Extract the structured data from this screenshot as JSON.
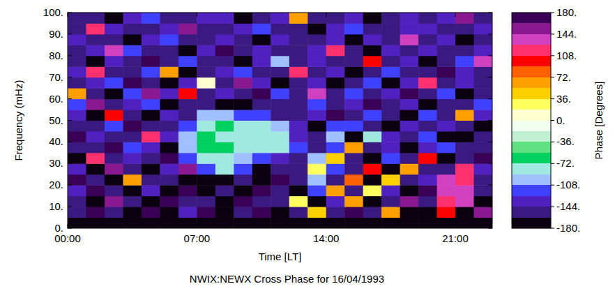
{
  "chart_data": {
    "type": "heatmap",
    "title": "NWIX:NEWX Cross Phase for 16/04/1993",
    "x_label": "Time [LT]",
    "y_label": "Frequency (mHz)",
    "x_edges": [
      0,
      1,
      2,
      3,
      4,
      5,
      6,
      7,
      8,
      9,
      10,
      11,
      12,
      13,
      14,
      15,
      16,
      17,
      18,
      19,
      20,
      21,
      22,
      23
    ],
    "y_edges": [
      0,
      5,
      10,
      15,
      20,
      25,
      30,
      35,
      40,
      45,
      50,
      55,
      60,
      65,
      70,
      75,
      80,
      85,
      90,
      95,
      100
    ],
    "cells": [
      [
        -176,
        -178,
        -175,
        -179,
        -177,
        -176,
        -178,
        -175,
        -177,
        -179,
        -176,
        -178,
        -175,
        -177,
        -176,
        -179,
        -178,
        -175,
        -177,
        -176,
        -178,
        -179,
        -177
      ],
      [
        -160,
        170,
        -150,
        -170,
        165,
        -165,
        -140,
        175,
        -172,
        -155,
        168,
        -168,
        -145,
        40,
        -160,
        170,
        -150,
        60,
        -175,
        -165,
        100,
        -170,
        160
      ],
      [
        -150,
        -170,
        160,
        -145,
        -175,
        172,
        -160,
        -155,
        -170,
        178,
        -162,
        -148,
        20,
        -165,
        -130,
        55,
        -170,
        -160,
        150,
        -155,
        125,
        135,
        -170
      ],
      [
        -140,
        165,
        -160,
        -175,
        -130,
        -168,
        175,
        -172,
        -158,
        -166,
        176,
        -150,
        -172,
        -120,
        70,
        -160,
        30,
        -140,
        -165,
        175,
        130,
        140,
        -150
      ],
      [
        170,
        -155,
        -168,
        60,
        -160,
        -145,
        -172,
        -165,
        -175,
        -150,
        -170,
        168,
        -155,
        -100,
        -150,
        80,
        -170,
        50,
        -160,
        -140,
        140,
        120,
        -160
      ],
      [
        -130,
        -170,
        150,
        -160,
        -175,
        -140,
        160,
        -110,
        -90,
        -120,
        -165,
        -150,
        -160,
        20,
        -110,
        -150,
        100,
        -170,
        60,
        -155,
        -160,
        110,
        -140
      ],
      [
        -165,
        110,
        -145,
        -130,
        -150,
        170,
        -120,
        -80,
        -75,
        -95,
        -110,
        -130,
        -150,
        -100,
        40,
        -160,
        -170,
        -120,
        -145,
        90,
        -170,
        -150,
        175
      ],
      [
        -150,
        -160,
        170,
        -110,
        -140,
        -165,
        -100,
        -70,
        -72,
        -85,
        -78,
        -90,
        -120,
        -160,
        -110,
        60,
        -150,
        -130,
        -165,
        -140,
        -120,
        -160,
        -150
      ],
      [
        175,
        -140,
        -160,
        -150,
        120,
        -130,
        -95,
        -65,
        -75,
        -80,
        -90,
        -85,
        -130,
        -150,
        -100,
        -170,
        -80,
        -140,
        -155,
        -110,
        -165,
        -170,
        -145
      ],
      [
        -160,
        -150,
        -120,
        170,
        -145,
        -155,
        -110,
        -80,
        -70,
        -90,
        -85,
        -100,
        -140,
        -165,
        -120,
        -110,
        -150,
        -170,
        -135,
        -160,
        -140,
        -155,
        -165
      ],
      [
        -140,
        -170,
        90,
        -155,
        -165,
        -130,
        -150,
        -100,
        -95,
        -110,
        -120,
        -145,
        -160,
        -130,
        175,
        -150,
        -125,
        -160,
        -170,
        -120,
        -150,
        60,
        -140
      ],
      [
        -120,
        160,
        -150,
        -140,
        -110,
        -170,
        -160,
        -155,
        -165,
        -170,
        -150,
        -160,
        -145,
        -120,
        -160,
        -140,
        170,
        -150,
        -130,
        -165,
        -145,
        -160,
        -120
      ],
      [
        70,
        -150,
        -165,
        -120,
        150,
        -140,
        100,
        -160,
        -130,
        -145,
        170,
        -120,
        -160,
        140,
        -150,
        -110,
        -160,
        -130,
        165,
        -150,
        -120,
        -170,
        -160
      ],
      [
        -160,
        -130,
        -110,
        175,
        -150,
        -165,
        -140,
        0,
        -150,
        160,
        -135,
        -170,
        -150,
        -130,
        -165,
        -150,
        -120,
        -170,
        -140,
        110,
        -160,
        -130,
        -150
      ],
      [
        -140,
        110,
        -160,
        -150,
        -120,
        70,
        -170,
        -150,
        -140,
        -120,
        -160,
        -150,
        120,
        -160,
        -140,
        -170,
        -150,
        -120,
        -160,
        -150,
        170,
        -140,
        -160
      ],
      [
        -150,
        -165,
        -130,
        -160,
        170,
        -150,
        -120,
        -160,
        -150,
        -165,
        -140,
        -100,
        -160,
        -130,
        -150,
        -160,
        90,
        -150,
        -130,
        -165,
        -150,
        -120,
        140
      ],
      [
        -160,
        -140,
        140,
        -120,
        -160,
        -150,
        -165,
        -140,
        165,
        -150,
        -130,
        -160,
        -150,
        -140,
        110,
        -150,
        -165,
        -140,
        -150,
        -130,
        -160,
        -150,
        -130
      ],
      [
        -130,
        -160,
        -150,
        -165,
        -140,
        -120,
        -150,
        -160,
        -130,
        -150,
        -165,
        -140,
        -160,
        -150,
        -130,
        -165,
        -140,
        -160,
        130,
        -150,
        -140,
        -165,
        -150
      ],
      [
        -150,
        120,
        -140,
        -160,
        -150,
        -130,
        150,
        -150,
        -160,
        -140,
        -120,
        -160,
        -150,
        -165,
        -140,
        -120,
        -150,
        -160,
        -140,
        -130,
        -160,
        -150,
        -140
      ],
      [
        -160,
        -150,
        -165,
        -140,
        -120,
        -160,
        -150,
        -130,
        -140,
        -165,
        -150,
        -140,
        60,
        -150,
        -160,
        -140,
        -165,
        -150,
        -130,
        -160,
        -140,
        150,
        -160
      ]
    ],
    "xlim": [
      0,
      23
    ],
    "xticks": [
      {
        "value": 0,
        "label": "00:00"
      },
      {
        "value": 7,
        "label": "07:00"
      },
      {
        "value": 14,
        "label": "14:00"
      },
      {
        "value": 21,
        "label": "21:00"
      }
    ],
    "ylim": [
      0,
      100
    ],
    "yticks": [
      {
        "value": 0,
        "label": "0."
      },
      {
        "value": 10,
        "label": "10."
      },
      {
        "value": 20,
        "label": "20."
      },
      {
        "value": 30,
        "label": "30."
      },
      {
        "value": 40,
        "label": "40."
      },
      {
        "value": 50,
        "label": "50."
      },
      {
        "value": 60,
        "label": "60."
      },
      {
        "value": 70,
        "label": "70."
      },
      {
        "value": 80,
        "label": "80."
      },
      {
        "value": 90,
        "label": "90."
      },
      {
        "value": 100,
        "label": "100."
      }
    ],
    "colorbar": {
      "label": "Phase [Degrees]",
      "range": [
        -180,
        180
      ],
      "ticks": [
        {
          "value": 180,
          "label": "180."
        },
        {
          "value": 144,
          "label": "144."
        },
        {
          "value": 108,
          "label": "108."
        },
        {
          "value": 72,
          "label": "72."
        },
        {
          "value": 36,
          "label": "36."
        },
        {
          "value": 0,
          "label": "0."
        },
        {
          "value": -36,
          "label": "-36."
        },
        {
          "value": -72,
          "label": "-72."
        },
        {
          "value": -108,
          "label": "-108."
        },
        {
          "value": -144,
          "label": "-144."
        },
        {
          "value": -180,
          "label": "-180."
        }
      ]
    }
  }
}
